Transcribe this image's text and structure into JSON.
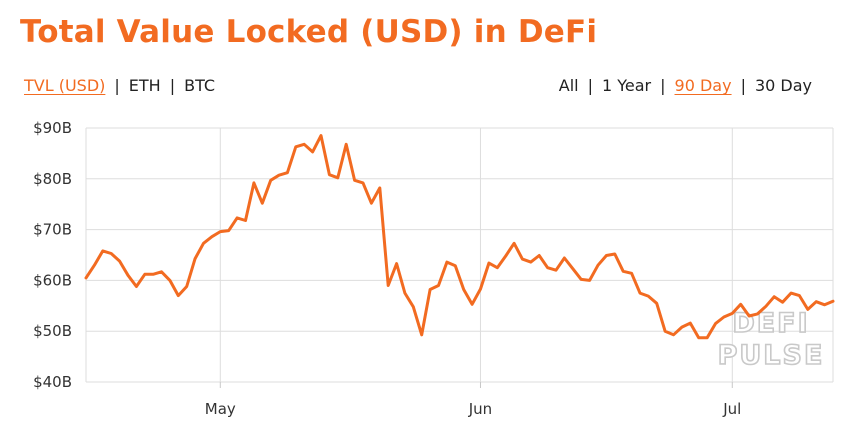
{
  "title": "Total Value Locked (USD) in DeFi",
  "currency_toggle": {
    "options": [
      "TVL (USD)",
      "ETH",
      "BTC"
    ],
    "selected": "TVL (USD)"
  },
  "range_toggle": {
    "options": [
      "All",
      "1 Year",
      "90 Day",
      "30 Day"
    ],
    "selected": "90 Day"
  },
  "watermark": [
    "DEFI",
    "PULSE"
  ],
  "colors": {
    "accent": "#f26b21",
    "grid": "#dddddd"
  },
  "chart_data": {
    "type": "line",
    "title": "Total Value Locked (USD) in DeFi",
    "xlabel": "",
    "ylabel": "",
    "ylim": [
      40,
      90
    ],
    "y_ticks": [
      {
        "value": 90,
        "label": "$90B"
      },
      {
        "value": 80,
        "label": "$80B"
      },
      {
        "value": 70,
        "label": "$70B"
      },
      {
        "value": 60,
        "label": "$60B"
      },
      {
        "value": 50,
        "label": "$50B"
      },
      {
        "value": 40,
        "label": "$40B"
      }
    ],
    "x_range": [
      "2021-04-15",
      "2021-07-13"
    ],
    "x_ticks": [
      {
        "date": "2021-05-01",
        "label": "May"
      },
      {
        "date": "2021-06-01",
        "label": "Jun"
      },
      {
        "date": "2021-07-01",
        "label": "Jul"
      }
    ],
    "grid": true,
    "series": [
      {
        "x": [
          "2021-04-15",
          "2021-04-16",
          "2021-04-17",
          "2021-04-18",
          "2021-04-19",
          "2021-04-20",
          "2021-04-21",
          "2021-04-22",
          "2021-04-23",
          "2021-04-24",
          "2021-04-25",
          "2021-04-26",
          "2021-04-27",
          "2021-04-28",
          "2021-04-29",
          "2021-04-30",
          "2021-05-01",
          "2021-05-02",
          "2021-05-03",
          "2021-05-04",
          "2021-05-05",
          "2021-05-06",
          "2021-05-07",
          "2021-05-08",
          "2021-05-09",
          "2021-05-10",
          "2021-05-11",
          "2021-05-12",
          "2021-05-13",
          "2021-05-14",
          "2021-05-15",
          "2021-05-16",
          "2021-05-17",
          "2021-05-18",
          "2021-05-19",
          "2021-05-20",
          "2021-05-21",
          "2021-05-22",
          "2021-05-23",
          "2021-05-24",
          "2021-05-25",
          "2021-05-26",
          "2021-05-27",
          "2021-05-28",
          "2021-05-29",
          "2021-05-30",
          "2021-05-31",
          "2021-06-01",
          "2021-06-02",
          "2021-06-03",
          "2021-06-04",
          "2021-06-05",
          "2021-06-06",
          "2021-06-07",
          "2021-06-08",
          "2021-06-09",
          "2021-06-10",
          "2021-06-11",
          "2021-06-12",
          "2021-06-13",
          "2021-06-14",
          "2021-06-15",
          "2021-06-16",
          "2021-06-17",
          "2021-06-18",
          "2021-06-19",
          "2021-06-20",
          "2021-06-21",
          "2021-06-22",
          "2021-06-23",
          "2021-06-24",
          "2021-06-25",
          "2021-06-26",
          "2021-06-27",
          "2021-06-28",
          "2021-06-29",
          "2021-06-30",
          "2021-07-01",
          "2021-07-02",
          "2021-07-03",
          "2021-07-04",
          "2021-07-05",
          "2021-07-06",
          "2021-07-07",
          "2021-07-08",
          "2021-07-09",
          "2021-07-10",
          "2021-07-11",
          "2021-07-12",
          "2021-07-13"
        ],
        "values": [
          60.5,
          63.0,
          65.8,
          65.3,
          63.8,
          61.0,
          58.8,
          61.2,
          61.2,
          61.7,
          60.0,
          57.0,
          58.8,
          64.3,
          67.3,
          68.6,
          69.6,
          69.8,
          72.3,
          71.8,
          79.2,
          75.2,
          79.7,
          80.7,
          81.2,
          86.3,
          86.8,
          85.3,
          88.5,
          80.8,
          80.2,
          86.8,
          79.7,
          79.2,
          75.2,
          78.2,
          59.0,
          63.3,
          57.5,
          54.8,
          49.3,
          58.2,
          59.0,
          63.6,
          62.9,
          58.2,
          55.3,
          58.3,
          63.4,
          62.5,
          64.8,
          67.3,
          64.2,
          63.6,
          64.9,
          62.5,
          62.0,
          64.4,
          62.3,
          60.2,
          60.0,
          63.0,
          64.9,
          65.2,
          61.8,
          61.4,
          57.5,
          56.9,
          55.5,
          50.0,
          49.3,
          50.8,
          51.6,
          48.7,
          48.7,
          51.5,
          52.8,
          53.5,
          55.3,
          53.0,
          53.4,
          54.9,
          56.8,
          55.7,
          57.5,
          57.0,
          54.3,
          55.8,
          55.2,
          55.9
        ]
      }
    ]
  }
}
